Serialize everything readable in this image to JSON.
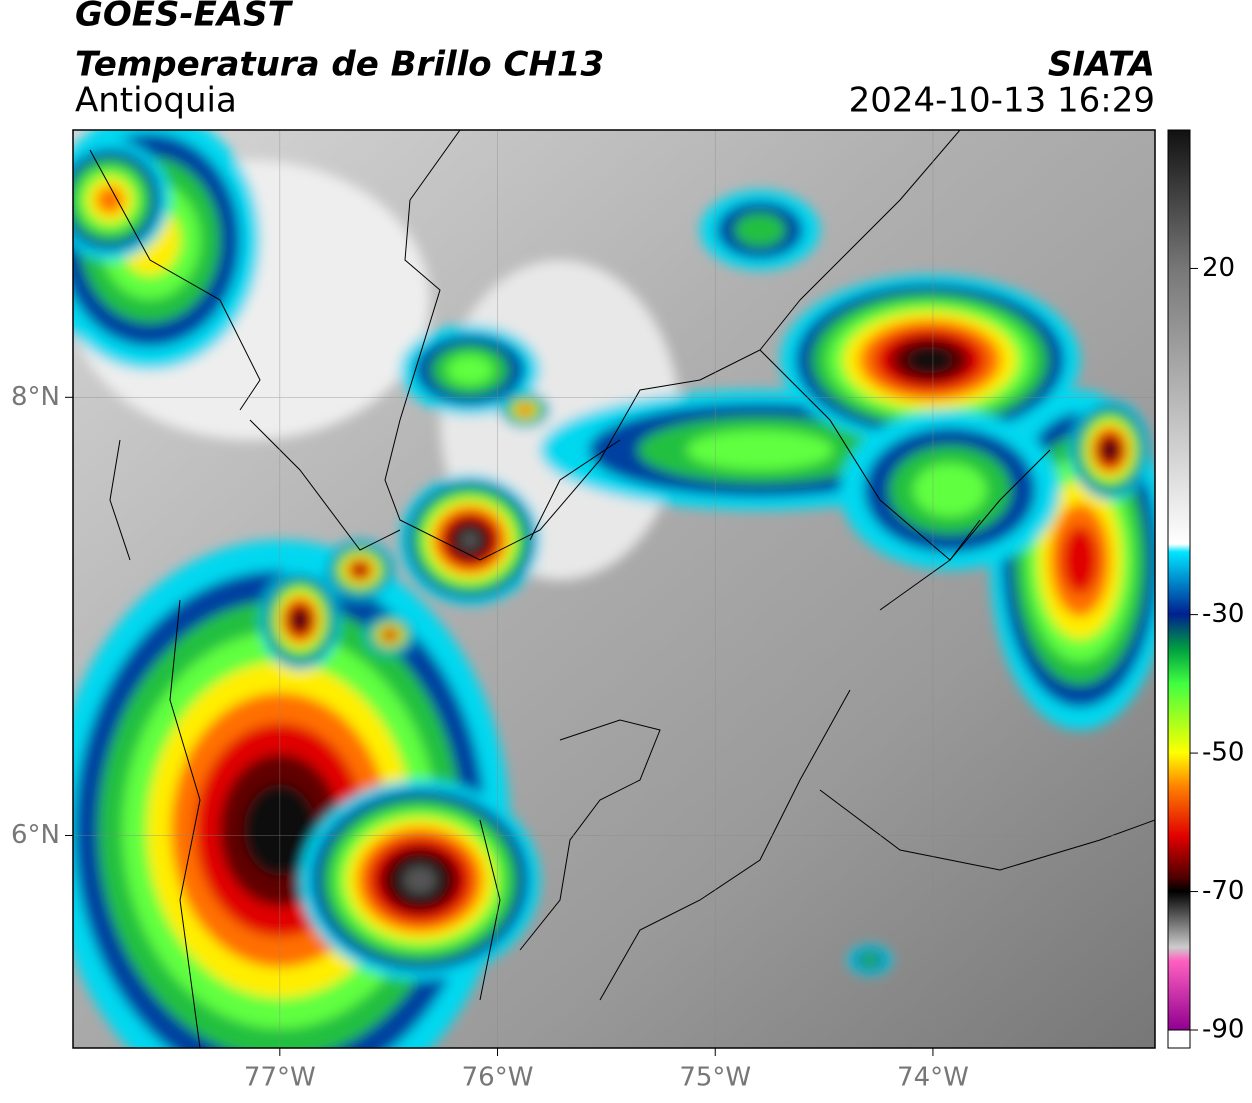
{
  "header": {
    "satellite": "GOES-EAST",
    "product": "Temperatura de Brillo CH13",
    "region": "Antioquia",
    "source": "SIATA",
    "datetime": "2024-10-13 16:29"
  },
  "map": {
    "xlim": [
      -77.95,
      -72.98
    ],
    "ylim": [
      5.03,
      9.22
    ],
    "xticks": [
      {
        "value": -77,
        "label": "77°W"
      },
      {
        "value": -76,
        "label": "76°W"
      },
      {
        "value": -75,
        "label": "75°W"
      },
      {
        "value": -74,
        "label": "74°W"
      }
    ],
    "yticks": [
      {
        "value": 8,
        "label": "8°N"
      },
      {
        "value": 6,
        "label": "6°N"
      }
    ],
    "grid": true
  },
  "colorbar": {
    "lim": [
      -90,
      40
    ],
    "ticks": [
      20,
      -30,
      -50,
      -70,
      -90
    ]
  }
}
